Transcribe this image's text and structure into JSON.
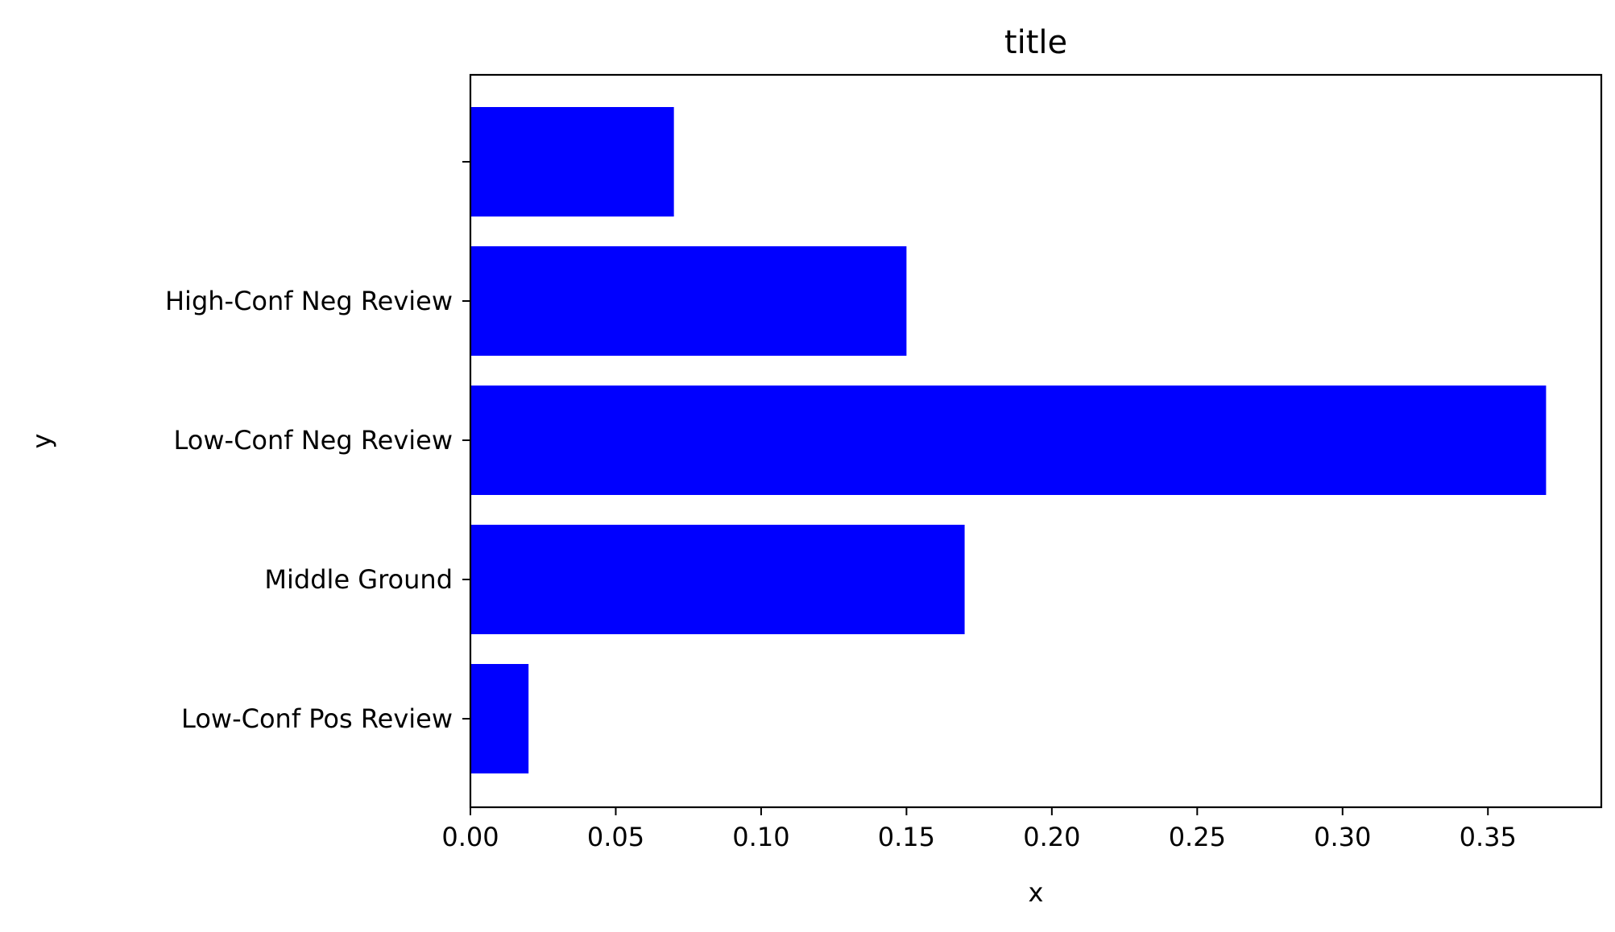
{
  "chart_data": {
    "type": "bar",
    "orientation": "horizontal",
    "title": "title",
    "xlabel": "x",
    "ylabel": "y",
    "categories": [
      "Low-Conf Pos Review",
      "Middle Ground",
      "Low-Conf Neg Review",
      "High-Conf Neg Review",
      ""
    ],
    "values": [
      0.02,
      0.17,
      0.37,
      0.15,
      0.07
    ],
    "xlim": [
      0,
      0.389
    ],
    "xticks": [
      0.0,
      0.05,
      0.1,
      0.15,
      0.2,
      0.25,
      0.3,
      0.35
    ],
    "xtick_labels": [
      "0.00",
      "0.05",
      "0.10",
      "0.15",
      "0.20",
      "0.25",
      "0.30",
      "0.35"
    ],
    "bar_color": "#0000ff",
    "grid": false,
    "legend": false
  }
}
